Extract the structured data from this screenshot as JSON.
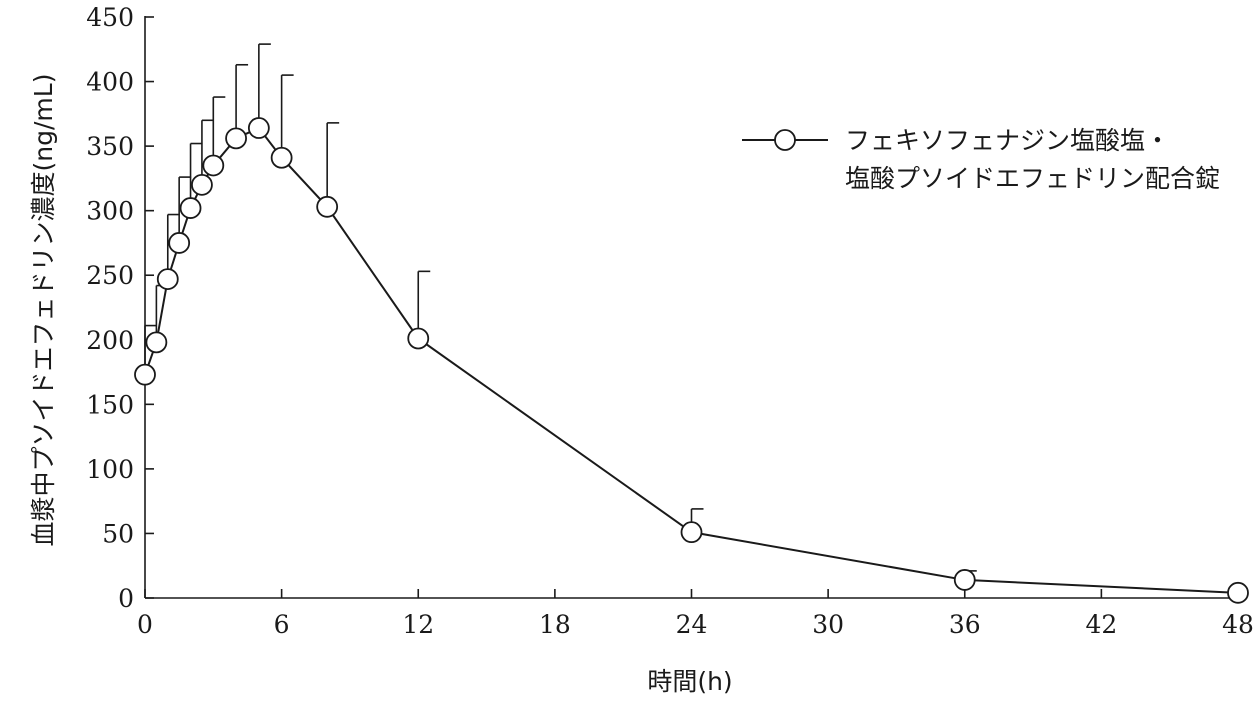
{
  "chart_data": {
    "type": "line",
    "title": "",
    "xlabel": "時間(h)",
    "ylabel": "血漿中プソイドエフェドリン濃度(ng/mL)",
    "xlim": [
      0,
      48
    ],
    "ylim": [
      0,
      450
    ],
    "xticks": [
      0,
      6,
      12,
      18,
      24,
      30,
      36,
      42,
      48
    ],
    "yticks": [
      0,
      50,
      100,
      150,
      200,
      250,
      300,
      350,
      400,
      450
    ],
    "grid": false,
    "legend_position": "top-right",
    "series": [
      {
        "name": "フェキソフェナジン塩酸塩・\n塩酸プソイドエフェドリン配合錠",
        "marker": "open-circle",
        "x": [
          0,
          0.5,
          1,
          1.5,
          2,
          2.5,
          3,
          4,
          5,
          6,
          8,
          12,
          24,
          36,
          48
        ],
        "y": [
          173,
          198,
          247,
          275,
          302,
          320,
          335,
          356,
          364,
          341,
          303,
          201,
          51,
          14,
          4
        ],
        "error_upper": [
          211,
          242,
          297,
          326,
          352,
          370,
          388,
          413,
          429,
          405,
          368,
          253,
          69,
          21,
          4
        ]
      }
    ]
  }
}
